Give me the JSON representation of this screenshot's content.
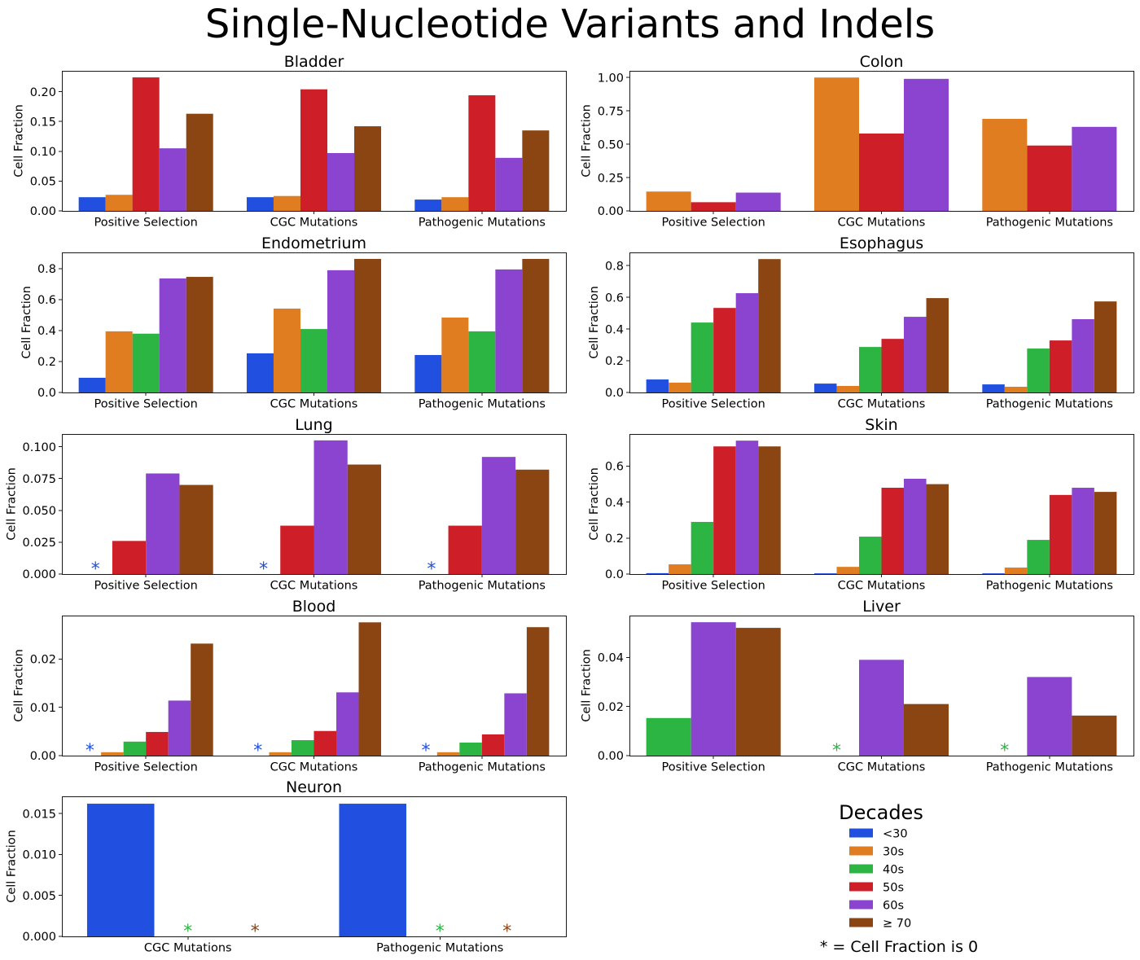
{
  "title": "Single-Nucleotide Variants and Indels",
  "zero_marker": "*",
  "hues": [
    {
      "name": "<30",
      "color": "#2150e0"
    },
    {
      "name": "30s",
      "color": "#e07d20"
    },
    {
      "name": "40s",
      "color": "#2db543"
    },
    {
      "name": "50s",
      "color": "#ce1e28"
    },
    {
      "name": "60s",
      "color": "#8b44cf"
    },
    {
      "name": "≥ 70",
      "color": "#8b4513"
    }
  ],
  "legend": {
    "title": "Decades",
    "placement": "bottom-right",
    "note": "* = Cell Fraction is 0"
  },
  "chart_data": [
    {
      "type": "bar",
      "title": "Bladder",
      "ylabel": "Cell Fraction",
      "categories": [
        "Positive Selection",
        "CGC Mutations",
        "Pathogenic Mutations"
      ],
      "ylim": [
        0,
        0.235
      ],
      "yticks": [
        0,
        0.05,
        0.1,
        0.15,
        0.2
      ],
      "ytick_labels": [
        "0.00",
        "0.05",
        "0.10",
        "0.15",
        "0.20"
      ],
      "grid": false,
      "series": [
        {
          "name": "<30",
          "values": [
            0.023,
            0.023,
            0.019
          ]
        },
        {
          "name": "30s",
          "values": [
            0.027,
            0.025,
            0.023
          ]
        },
        {
          "name": "50s",
          "values": [
            0.224,
            0.204,
            0.194
          ]
        },
        {
          "name": "60s",
          "values": [
            0.105,
            0.097,
            0.089
          ]
        },
        {
          "name": "≥ 70",
          "values": [
            0.163,
            0.142,
            0.135
          ]
        }
      ]
    },
    {
      "type": "bar",
      "title": "Colon",
      "ylabel": "Cell Fraction",
      "categories": [
        "Positive Selection",
        "CGC Mutations",
        "Pathogenic Mutations"
      ],
      "ylim": [
        0,
        1.05
      ],
      "yticks": [
        0,
        0.25,
        0.5,
        0.75,
        1.0
      ],
      "ytick_labels": [
        "0.00",
        "0.25",
        "0.50",
        "0.75",
        "1.00"
      ],
      "grid": false,
      "series": [
        {
          "name": "30s",
          "values": [
            0.145,
            1.0,
            0.69
          ]
        },
        {
          "name": "50s",
          "values": [
            0.065,
            0.58,
            0.49
          ]
        },
        {
          "name": "60s",
          "values": [
            0.137,
            0.99,
            0.63
          ]
        }
      ]
    },
    {
      "type": "bar",
      "title": "Endometrium",
      "ylabel": "Cell Fraction",
      "categories": [
        "Positive Selection",
        "CGC Mutations",
        "Pathogenic Mutations"
      ],
      "ylim": [
        0,
        0.905
      ],
      "yticks": [
        0,
        0.2,
        0.4,
        0.6,
        0.8
      ],
      "ytick_labels": [
        "0.0",
        "0.2",
        "0.4",
        "0.6",
        "0.8"
      ],
      "grid": false,
      "series": [
        {
          "name": "<30",
          "values": [
            0.095,
            0.253,
            0.242
          ]
        },
        {
          "name": "30s",
          "values": [
            0.395,
            0.542,
            0.484
          ]
        },
        {
          "name": "40s",
          "values": [
            0.38,
            0.41,
            0.395
          ]
        },
        {
          "name": "60s",
          "values": [
            0.737,
            0.79,
            0.795
          ]
        },
        {
          "name": "≥ 70",
          "values": [
            0.747,
            0.863,
            0.863
          ]
        }
      ]
    },
    {
      "type": "bar",
      "title": "Esophagus",
      "ylabel": "Cell Fraction",
      "categories": [
        "Positive Selection",
        "CGC Mutations",
        "Pathogenic Mutations"
      ],
      "ylim": [
        0,
        0.883
      ],
      "yticks": [
        0,
        0.2,
        0.4,
        0.6,
        0.8
      ],
      "ytick_labels": [
        "0.0",
        "0.2",
        "0.4",
        "0.6",
        "0.8"
      ],
      "grid": false,
      "series": [
        {
          "name": "<30",
          "values": [
            0.082,
            0.056,
            0.051
          ]
        },
        {
          "name": "30s",
          "values": [
            0.062,
            0.041,
            0.036
          ]
        },
        {
          "name": "40s",
          "values": [
            0.441,
            0.287,
            0.277
          ]
        },
        {
          "name": "50s",
          "values": [
            0.533,
            0.338,
            0.328
          ]
        },
        {
          "name": "60s",
          "values": [
            0.626,
            0.477,
            0.462
          ]
        },
        {
          "name": "≥ 70",
          "values": [
            0.841,
            0.595,
            0.574
          ]
        }
      ]
    },
    {
      "type": "bar",
      "title": "Lung",
      "ylabel": "Cell Fraction",
      "categories": [
        "Positive Selection",
        "CGC Mutations",
        "Pathogenic Mutations"
      ],
      "ylim": [
        0,
        0.11
      ],
      "yticks": [
        0,
        0.025,
        0.05,
        0.075,
        0.1
      ],
      "ytick_labels": [
        "0.000",
        "0.025",
        "0.050",
        "0.075",
        "0.100"
      ],
      "grid": false,
      "series": [
        {
          "name": "<30",
          "values": [
            0,
            0,
            0
          ]
        },
        {
          "name": "50s",
          "values": [
            0.026,
            0.038,
            0.038
          ]
        },
        {
          "name": "60s",
          "values": [
            0.079,
            0.105,
            0.092
          ]
        },
        {
          "name": "≥ 70",
          "values": [
            0.07,
            0.086,
            0.082
          ]
        }
      ]
    },
    {
      "type": "bar",
      "title": "Skin",
      "ylabel": "Cell Fraction",
      "categories": [
        "Positive Selection",
        "CGC Mutations",
        "Pathogenic Mutations"
      ],
      "ylim": [
        0,
        0.779
      ],
      "yticks": [
        0,
        0.2,
        0.4,
        0.6
      ],
      "ytick_labels": [
        "0.0",
        "0.2",
        "0.4",
        "0.6"
      ],
      "grid": false,
      "series": [
        {
          "name": "<30",
          "values": [
            0.005,
            0.004,
            0.004
          ]
        },
        {
          "name": "30s",
          "values": [
            0.054,
            0.04,
            0.036
          ]
        },
        {
          "name": "40s",
          "values": [
            0.29,
            0.208,
            0.19
          ]
        },
        {
          "name": "50s",
          "values": [
            0.71,
            0.48,
            0.44
          ]
        },
        {
          "name": "60s",
          "values": [
            0.742,
            0.53,
            0.48
          ]
        },
        {
          "name": "≥ 70",
          "values": [
            0.71,
            0.5,
            0.457
          ]
        }
      ]
    },
    {
      "type": "bar",
      "title": "Blood",
      "ylabel": "Cell Fraction",
      "categories": [
        "Positive Selection",
        "CGC Mutations",
        "Pathogenic Mutations"
      ],
      "ylim": [
        0,
        0.029
      ],
      "yticks": [
        0,
        0.01,
        0.02
      ],
      "ytick_labels": [
        "0.00",
        "0.01",
        "0.02"
      ],
      "grid": false,
      "series": [
        {
          "name": "<30",
          "values": [
            0,
            0,
            0
          ]
        },
        {
          "name": "30s",
          "values": [
            0.0007,
            0.0007,
            0.0007
          ]
        },
        {
          "name": "40s",
          "values": [
            0.0029,
            0.0032,
            0.0027
          ]
        },
        {
          "name": "50s",
          "values": [
            0.0049,
            0.0051,
            0.0044
          ]
        },
        {
          "name": "60s",
          "values": [
            0.0114,
            0.0131,
            0.0129
          ]
        },
        {
          "name": "≥ 70",
          "values": [
            0.0232,
            0.0276,
            0.0266
          ]
        }
      ]
    },
    {
      "type": "bar",
      "title": "Liver",
      "ylabel": "Cell Fraction",
      "categories": [
        "Positive Selection",
        "CGC Mutations",
        "Pathogenic Mutations"
      ],
      "ylim": [
        0,
        0.057
      ],
      "yticks": [
        0,
        0.02,
        0.04
      ],
      "ytick_labels": [
        "0.00",
        "0.02",
        "0.04"
      ],
      "grid": false,
      "series": [
        {
          "name": "40s",
          "values": [
            0.0153,
            0,
            0
          ]
        },
        {
          "name": "60s",
          "values": [
            0.0543,
            0.039,
            0.032
          ]
        },
        {
          "name": "≥ 70",
          "values": [
            0.052,
            0.021,
            0.0163
          ]
        }
      ]
    },
    {
      "type": "bar",
      "title": "Neuron",
      "ylabel": "Cell Fraction",
      "categories": [
        "CGC Mutations",
        "Pathogenic Mutations"
      ],
      "ylim": [
        0,
        0.0171
      ],
      "yticks": [
        0,
        0.005,
        0.01,
        0.015
      ],
      "ytick_labels": [
        "0.000",
        "0.005",
        "0.010",
        "0.015"
      ],
      "grid": false,
      "series": [
        {
          "name": "<30",
          "values": [
            0.0162,
            0.0162
          ]
        },
        {
          "name": "40s",
          "values": [
            0,
            0
          ]
        },
        {
          "name": "≥ 70",
          "values": [
            0,
            0
          ]
        }
      ]
    }
  ]
}
